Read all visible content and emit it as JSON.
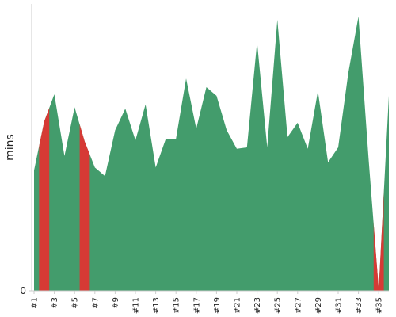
{
  "chart_data": {
    "type": "area",
    "y_label": "mins",
    "categories": [
      "#1",
      null,
      "#3",
      null,
      "#5",
      null,
      "#7",
      null,
      "#9",
      null,
      "#11",
      null,
      "#13",
      null,
      "#15",
      null,
      "#17",
      null,
      "#19",
      null,
      "#21",
      null,
      "#23",
      null,
      "#25",
      null,
      "#27",
      null,
      "#29",
      null,
      "#31",
      null,
      "#33",
      null,
      "#35",
      null
    ],
    "values": [
      42,
      59,
      68.5,
      47,
      64,
      52,
      43,
      40,
      56,
      63.5,
      52.5,
      65,
      43,
      53,
      53,
      74,
      56.5,
      71,
      68,
      56,
      49.5,
      50,
      86.7,
      50,
      94.5,
      53.6,
      58.6,
      49.5,
      69.6,
      44.8,
      50,
      76,
      95.6,
      46,
      0.5,
      68
    ],
    "color": "#439c6c",
    "colors": [
      "#439c6c",
      "#d63a35",
      "#439c6c",
      "#439c6c",
      "#439c6c",
      "#d63a35",
      "#439c6c",
      "#439c6c",
      "#439c6c",
      "#439c6c",
      "#439c6c",
      "#439c6c",
      "#439c6c",
      "#439c6c",
      "#439c6c",
      "#439c6c",
      "#439c6c",
      "#439c6c",
      "#439c6c",
      "#439c6c",
      "#439c6c",
      "#439c6c",
      "#439c6c",
      "#439c6c",
      "#439c6c",
      "#439c6c",
      "#439c6c",
      "#439c6c",
      "#439c6c",
      "#439c6c",
      "#439c6c",
      "#439c6c",
      "#439c6c",
      "#439c6c",
      "#d63a35",
      "#439c6c"
    ],
    "ylim": [
      0,
      100
    ],
    "yticks": [
      0
    ]
  }
}
